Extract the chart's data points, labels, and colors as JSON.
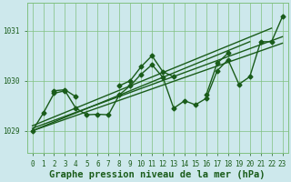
{
  "title": "Graphe pression niveau de la mer (hPa)",
  "xlabel_labels": [
    "0",
    "1",
    "2",
    "3",
    "4",
    "5",
    "6",
    "7",
    "8",
    "9",
    "10",
    "11",
    "12",
    "13",
    "14",
    "15",
    "16",
    "17",
    "18",
    "19",
    "20",
    "21",
    "22",
    "23"
  ],
  "xlim": [
    -0.5,
    23.5
  ],
  "ylim": [
    1028.55,
    1031.55
  ],
  "yticks": [
    1029,
    1030,
    1031
  ],
  "bg_color": "#cde8ec",
  "grid_color": "#80c080",
  "line_color": "#1a5c1a",
  "series1": [
    1029.0,
    1029.35,
    1029.75,
    1029.8,
    1029.45,
    1029.32,
    1029.33,
    1029.32,
    1029.72,
    1029.9,
    1030.13,
    1030.32,
    1030.07,
    1029.45,
    1029.6,
    1029.52,
    1029.65,
    1030.2,
    1030.42,
    1029.93,
    1030.08,
    1030.78,
    1030.78,
    1031.28
  ],
  "series2": [
    null,
    null,
    1029.8,
    1029.82,
    1029.68,
    null,
    null,
    null,
    1029.9,
    1030.0,
    1030.28,
    1030.5,
    1030.18,
    1030.08,
    null,
    null,
    1029.72,
    1030.35,
    1030.55,
    null,
    null,
    null,
    null,
    null
  ],
  "trend_lines": [
    {
      "x": [
        0,
        23
      ],
      "y": [
        1029.0,
        1030.75
      ]
    },
    {
      "x": [
        0,
        23
      ],
      "y": [
        1029.05,
        1030.88
      ]
    },
    {
      "x": [
        0,
        22
      ],
      "y": [
        1029.1,
        1031.05
      ]
    },
    {
      "x": [
        0,
        20
      ],
      "y": [
        1029.0,
        1030.78
      ]
    }
  ],
  "marker": "D",
  "markersize": 2.5,
  "linewidth": 1.0,
  "title_fontsize": 7.5,
  "tick_fontsize": 5.5,
  "title_color": "#1a5c1a",
  "tick_color": "#1a5c1a",
  "spine_color": "#80c080"
}
